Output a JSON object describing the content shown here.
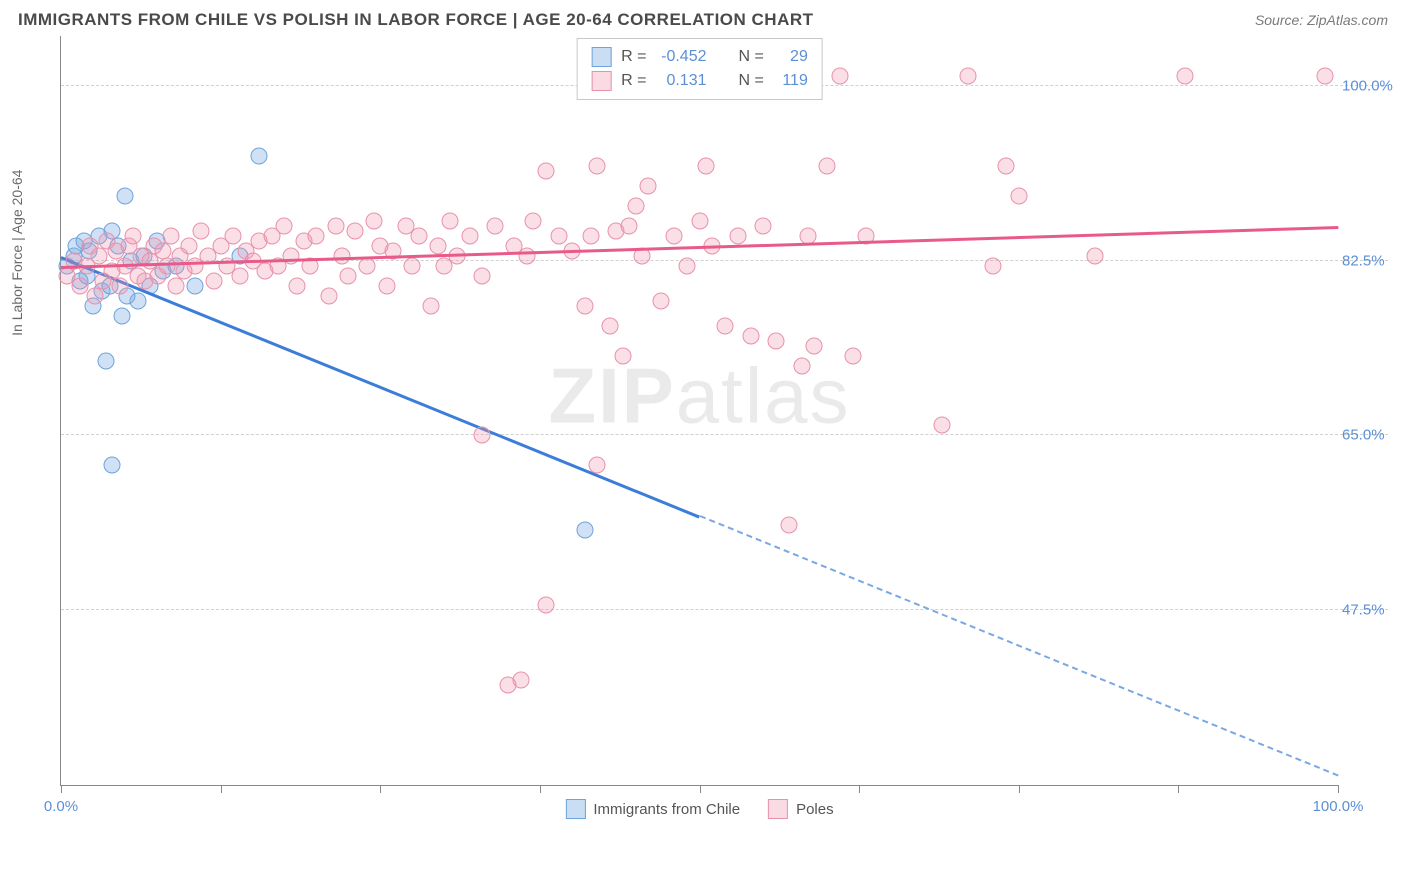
{
  "header": {
    "title": "IMMIGRANTS FROM CHILE VS POLISH IN LABOR FORCE | AGE 20-64 CORRELATION CHART",
    "source": "Source: ZipAtlas.com"
  },
  "chart": {
    "type": "scatter",
    "y_axis_label": "In Labor Force | Age 20-64",
    "xlim": [
      0,
      100
    ],
    "ylim": [
      30,
      105
    ],
    "x_ticks": [
      0,
      12.5,
      25,
      37.5,
      50,
      62.5,
      75,
      87.5,
      100
    ],
    "x_tick_labels": {
      "0": "0.0%",
      "100": "100.0%"
    },
    "y_gridlines": [
      47.5,
      65.0,
      82.5,
      100.0
    ],
    "y_tick_labels": {
      "47.5": "47.5%",
      "65.0": "65.0%",
      "82.5": "82.5%",
      "100.0": "100.0%"
    },
    "background_color": "#ffffff",
    "grid_color": "#d0d0d0",
    "axis_color": "#888888",
    "watermark": "ZIPatlas",
    "series": [
      {
        "name": "Immigrants from Chile",
        "color_fill": "rgba(120,170,225,0.35)",
        "color_stroke": "#6fa3db",
        "trend_color": "#3b7dd8",
        "r_value": "-0.452",
        "n_value": "29",
        "trend": {
          "x1": 0,
          "y1": 83,
          "x2": 50,
          "y2": 57,
          "dash_x2": 100,
          "dash_y2": 31
        },
        "points": [
          [
            0.5,
            82
          ],
          [
            1,
            83
          ],
          [
            1.2,
            84
          ],
          [
            1.5,
            80.5
          ],
          [
            1.8,
            84.5
          ],
          [
            2,
            81
          ],
          [
            2.2,
            83.5
          ],
          [
            2.5,
            78
          ],
          [
            3,
            85
          ],
          [
            3.2,
            79.5
          ],
          [
            3.5,
            72.5
          ],
          [
            3.8,
            80
          ],
          [
            4,
            62
          ],
          [
            4,
            85.5
          ],
          [
            4.5,
            84
          ],
          [
            4.8,
            77
          ],
          [
            5,
            89
          ],
          [
            5.2,
            79
          ],
          [
            5.5,
            82.5
          ],
          [
            6,
            78.5
          ],
          [
            6.5,
            83
          ],
          [
            7,
            80
          ],
          [
            7.5,
            84.5
          ],
          [
            8,
            81.5
          ],
          [
            9,
            82
          ],
          [
            10.5,
            80
          ],
          [
            14,
            83
          ],
          [
            15.5,
            93
          ],
          [
            41,
            55.5
          ]
        ]
      },
      {
        "name": "Poles",
        "color_fill": "rgba(240,150,175,0.3)",
        "color_stroke": "#e891ab",
        "trend_color": "#e85a8a",
        "r_value": "0.131",
        "n_value": "119",
        "trend": {
          "x1": 0,
          "y1": 82,
          "x2": 100,
          "y2": 86
        },
        "points": [
          [
            0.5,
            81
          ],
          [
            1,
            82.5
          ],
          [
            1.5,
            80
          ],
          [
            2,
            82
          ],
          [
            2.3,
            84
          ],
          [
            2.7,
            79
          ],
          [
            3,
            83
          ],
          [
            3.3,
            80.5
          ],
          [
            3.6,
            84.5
          ],
          [
            4,
            81.5
          ],
          [
            4.3,
            83.5
          ],
          [
            4.6,
            80
          ],
          [
            5,
            82
          ],
          [
            5.3,
            84
          ],
          [
            5.6,
            85
          ],
          [
            6,
            81
          ],
          [
            6.3,
            83
          ],
          [
            6.6,
            80.5
          ],
          [
            7,
            82.5
          ],
          [
            7.3,
            84
          ],
          [
            7.6,
            81
          ],
          [
            8,
            83.5
          ],
          [
            8.3,
            82
          ],
          [
            8.6,
            85
          ],
          [
            9,
            80
          ],
          [
            9.3,
            83
          ],
          [
            9.6,
            81.5
          ],
          [
            10,
            84
          ],
          [
            10.5,
            82
          ],
          [
            11,
            85.5
          ],
          [
            11.5,
            83
          ],
          [
            12,
            80.5
          ],
          [
            12.5,
            84
          ],
          [
            13,
            82
          ],
          [
            13.5,
            85
          ],
          [
            14,
            81
          ],
          [
            14.5,
            83.5
          ],
          [
            15,
            82.5
          ],
          [
            15.5,
            84.5
          ],
          [
            16,
            81.5
          ],
          [
            16.5,
            85
          ],
          [
            17,
            82
          ],
          [
            17.5,
            86
          ],
          [
            18,
            83
          ],
          [
            18.5,
            80
          ],
          [
            19,
            84.5
          ],
          [
            19.5,
            82
          ],
          [
            20,
            85
          ],
          [
            21,
            79
          ],
          [
            21.5,
            86
          ],
          [
            22,
            83
          ],
          [
            22.5,
            81
          ],
          [
            23,
            85.5
          ],
          [
            24,
            82
          ],
          [
            24.5,
            86.5
          ],
          [
            25,
            84
          ],
          [
            25.5,
            80
          ],
          [
            26,
            83.5
          ],
          [
            27,
            86
          ],
          [
            27.5,
            82
          ],
          [
            28,
            85
          ],
          [
            29,
            78
          ],
          [
            29.5,
            84
          ],
          [
            30,
            82
          ],
          [
            30.5,
            86.5
          ],
          [
            31,
            83
          ],
          [
            32,
            85
          ],
          [
            33,
            65
          ],
          [
            33,
            81
          ],
          [
            34,
            86
          ],
          [
            35,
            40
          ],
          [
            35.5,
            84
          ],
          [
            36,
            40.5
          ],
          [
            36.5,
            83
          ],
          [
            37,
            86.5
          ],
          [
            38,
            91.5
          ],
          [
            38,
            48
          ],
          [
            39,
            85
          ],
          [
            40,
            83.5
          ],
          [
            41,
            78
          ],
          [
            41.5,
            85
          ],
          [
            42,
            62
          ],
          [
            42,
            92
          ],
          [
            43,
            76
          ],
          [
            43.5,
            85.5
          ],
          [
            44,
            73
          ],
          [
            44.5,
            86
          ],
          [
            45,
            88
          ],
          [
            45.5,
            83
          ],
          [
            46,
            90
          ],
          [
            46.5,
            101
          ],
          [
            47,
            78.5
          ],
          [
            48,
            85
          ],
          [
            49,
            82
          ],
          [
            50,
            86.5
          ],
          [
            50.5,
            92
          ],
          [
            51,
            84
          ],
          [
            52,
            76
          ],
          [
            53,
            85
          ],
          [
            54,
            75
          ],
          [
            55,
            86
          ],
          [
            56,
            74.5
          ],
          [
            57,
            56
          ],
          [
            58,
            72
          ],
          [
            58.5,
            85
          ],
          [
            59,
            74
          ],
          [
            60,
            92
          ],
          [
            61,
            101
          ],
          [
            62,
            73
          ],
          [
            63,
            85
          ],
          [
            69,
            66
          ],
          [
            71,
            101
          ],
          [
            73,
            82
          ],
          [
            74,
            92
          ],
          [
            75,
            89
          ],
          [
            81,
            83
          ],
          [
            88,
            101
          ],
          [
            99,
            101
          ]
        ]
      }
    ],
    "legend_stats": {
      "r_label": "R =",
      "n_label": "N ="
    },
    "bottom_legend": [
      {
        "swatch": "blue",
        "label": "Immigrants from Chile"
      },
      {
        "swatch": "pink",
        "label": "Poles"
      }
    ]
  }
}
